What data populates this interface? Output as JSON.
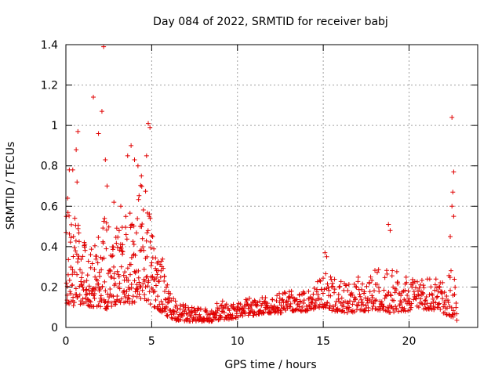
{
  "chart_data": {
    "type": "scatter",
    "title": "Day 084 of 2022, SRMTID for receiver babj",
    "xlabel": "GPS time / hours",
    "ylabel": "SRMTID / TECUs",
    "xlim": [
      0,
      24
    ],
    "ylim": [
      0,
      1.4
    ],
    "xticks": [
      0,
      5,
      10,
      15,
      20
    ],
    "xtick_labels": [
      "0",
      "5",
      "10",
      "15",
      "20"
    ],
    "yticks": [
      0,
      0.2,
      0.4,
      0.6,
      0.8,
      1.0,
      1.2,
      1.4
    ],
    "ytick_labels": [
      "0",
      "0.2",
      "0.4",
      "0.6",
      "0.8",
      "1",
      "1.2",
      "1.4"
    ],
    "grid": true,
    "marker": "+",
    "color": "#e00000",
    "envelope": {
      "x": [
        0.0,
        0.5,
        1.0,
        1.5,
        2.0,
        2.5,
        3.0,
        3.5,
        4.0,
        4.5,
        5.0,
        5.5,
        6.0,
        6.5,
        7.0,
        7.5,
        8.0,
        8.5,
        9.0,
        9.5,
        10.0,
        10.5,
        11.0,
        11.5,
        12.0,
        12.5,
        13.0,
        13.5,
        14.0,
        14.5,
        15.0,
        15.5,
        16.0,
        16.5,
        17.0,
        17.5,
        18.0,
        18.5,
        19.0,
        19.5,
        20.0,
        20.5,
        21.0,
        21.5,
        22.0,
        22.5,
        22.8
      ],
      "low": [
        0.12,
        0.1,
        0.12,
        0.1,
        0.1,
        0.08,
        0.12,
        0.12,
        0.12,
        0.15,
        0.1,
        0.08,
        0.05,
        0.03,
        0.03,
        0.03,
        0.03,
        0.03,
        0.04,
        0.04,
        0.05,
        0.06,
        0.06,
        0.07,
        0.07,
        0.07,
        0.08,
        0.08,
        0.08,
        0.09,
        0.1,
        0.08,
        0.08,
        0.07,
        0.08,
        0.08,
        0.09,
        0.08,
        0.07,
        0.08,
        0.08,
        0.09,
        0.09,
        0.08,
        0.07,
        0.05,
        0.03
      ],
      "high": [
        0.6,
        0.55,
        0.45,
        0.4,
        0.5,
        0.62,
        0.52,
        0.55,
        0.6,
        0.75,
        0.5,
        0.4,
        0.18,
        0.12,
        0.11,
        0.1,
        0.09,
        0.1,
        0.14,
        0.12,
        0.13,
        0.14,
        0.15,
        0.16,
        0.16,
        0.17,
        0.18,
        0.18,
        0.18,
        0.2,
        0.3,
        0.25,
        0.24,
        0.22,
        0.25,
        0.24,
        0.3,
        0.28,
        0.3,
        0.27,
        0.25,
        0.24,
        0.24,
        0.24,
        0.25,
        0.35,
        0.15
      ]
    },
    "outliers": {
      "x": [
        2.2,
        1.6,
        0.7,
        0.6,
        4.8,
        4.9,
        4.7,
        3.6,
        3.8,
        4.0,
        4.2,
        4.4,
        2.1,
        1.9,
        2.3,
        0.1,
        0.2,
        0.4,
        0.65,
        2.4,
        2.8,
        3.2,
        18.8,
        18.9,
        22.5,
        22.6,
        22.55,
        22.5,
        22.6,
        22.4,
        15.1,
        15.2
      ],
      "y": [
        1.39,
        1.14,
        0.97,
        0.88,
        1.01,
        0.99,
        0.85,
        0.85,
        0.9,
        0.83,
        0.8,
        0.75,
        1.07,
        0.96,
        0.83,
        0.64,
        0.78,
        0.78,
        0.72,
        0.7,
        0.62,
        0.6,
        0.51,
        0.48,
        1.04,
        0.77,
        0.67,
        0.6,
        0.55,
        0.45,
        0.37,
        0.35
      ]
    }
  }
}
